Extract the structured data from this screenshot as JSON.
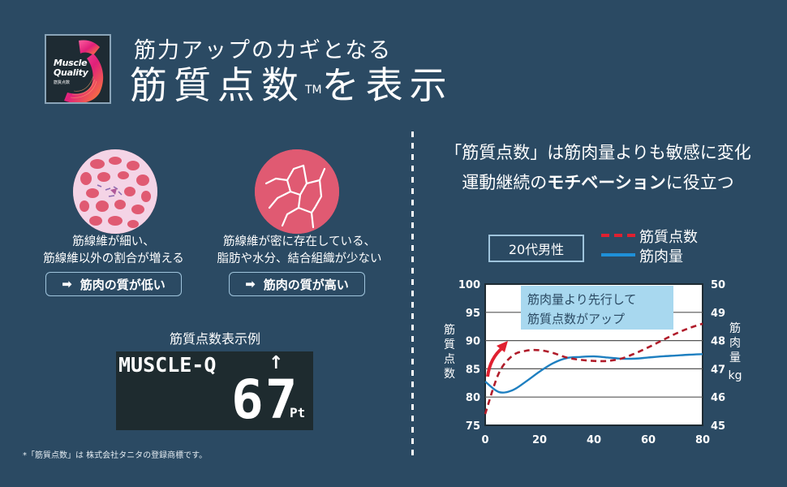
{
  "logo": {
    "line1": "Muscle",
    "line2": "Quality",
    "line3": "筋質点数"
  },
  "header": {
    "subtitle": "筋力アップのカギとなる",
    "title_main": "筋質点数",
    "title_tm": "TM",
    "title_rest": "を表示"
  },
  "left_panel": {
    "low": {
      "icon": "muscle-cross-section-low-quality",
      "desc_line1": "筋線維が細い、",
      "desc_line2": "筋線維以外の割合が増える",
      "result_arrow": "➡",
      "result": "筋肉の質が低い"
    },
    "high": {
      "icon": "muscle-cross-section-high-quality",
      "desc_line1": "筋線維が密に存在している、",
      "desc_line2": "脂肪や水分、結合組織が少ない",
      "result_arrow": "➡",
      "result": "筋肉の質が高い"
    },
    "example_label": "筋質点数表示例",
    "lcd": {
      "label": "MUSCLE-Q",
      "trend_arrow": "↑",
      "value": "67",
      "unit": "Pt"
    },
    "footnote": "*「筋質点数」は 株式会社タニタの登録商標です。"
  },
  "right_panel": {
    "headline1": "「筋質点数」は筋肉量よりも敏感に変化",
    "headline2_pre": "運動継続の",
    "headline2_bold": "モチベーション",
    "headline2_post": "に役立つ",
    "group": "20代男性",
    "legend": [
      {
        "label": "筋質点数",
        "style": "dashed",
        "color": "#e02030"
      },
      {
        "label": "筋肉量",
        "style": "solid",
        "color": "#1e90d8"
      }
    ],
    "annotation_line1": "筋肉量より先行して",
    "annotation_line2": "筋質点数がアップ",
    "y_left_label": [
      "筋",
      "質",
      "点",
      "数"
    ],
    "y_right_label": [
      "筋",
      "肉",
      "量",
      "kg"
    ]
  },
  "colors": {
    "background": "#2b4a63",
    "accent_red": "#e02030",
    "dashed_curve": "#b01c2a",
    "solid_curve": "#1e7fc0",
    "annotation_bg": "#a8d8ef",
    "circle_pink": "#e05a72"
  },
  "chart_data": {
    "type": "line",
    "title": "20代男性",
    "xlabel": "",
    "ylabel": "筋質点数",
    "y2label": "筋肉量 kg",
    "xlim": [
      0,
      80
    ],
    "ylim": [
      75,
      100
    ],
    "y2lim": [
      45,
      50
    ],
    "x_ticks": [
      0,
      20,
      40,
      60,
      80
    ],
    "y_ticks": [
      75,
      80,
      85,
      90,
      95,
      100
    ],
    "y2_ticks": [
      45,
      46,
      47,
      48,
      49,
      50
    ],
    "grid": "horizontal",
    "legend_position": "top-right",
    "annotation": "筋肉量より先行して 筋質点数がアップ",
    "series": [
      {
        "name": "筋質点数",
        "axis": "left",
        "style": "dashed",
        "x": [
          0,
          5,
          10,
          15,
          20,
          25,
          30,
          35,
          40,
          45,
          50,
          55,
          60,
          65,
          70,
          75,
          80
        ],
        "values": [
          77.0,
          84.2,
          87.3,
          88.2,
          88.3,
          87.8,
          87.0,
          86.6,
          86.4,
          86.4,
          86.8,
          87.7,
          88.8,
          90.0,
          91.2,
          92.2,
          93.0
        ]
      },
      {
        "name": "筋肉量",
        "axis": "right",
        "style": "solid",
        "x": [
          0,
          5,
          10,
          15,
          20,
          25,
          30,
          35,
          40,
          45,
          50,
          55,
          60,
          65,
          70,
          75,
          80
        ],
        "values": [
          46.55,
          46.18,
          46.24,
          46.55,
          46.9,
          47.2,
          47.38,
          47.42,
          47.44,
          47.4,
          47.36,
          47.36,
          47.4,
          47.44,
          47.47,
          47.5,
          47.52
        ]
      }
    ]
  }
}
